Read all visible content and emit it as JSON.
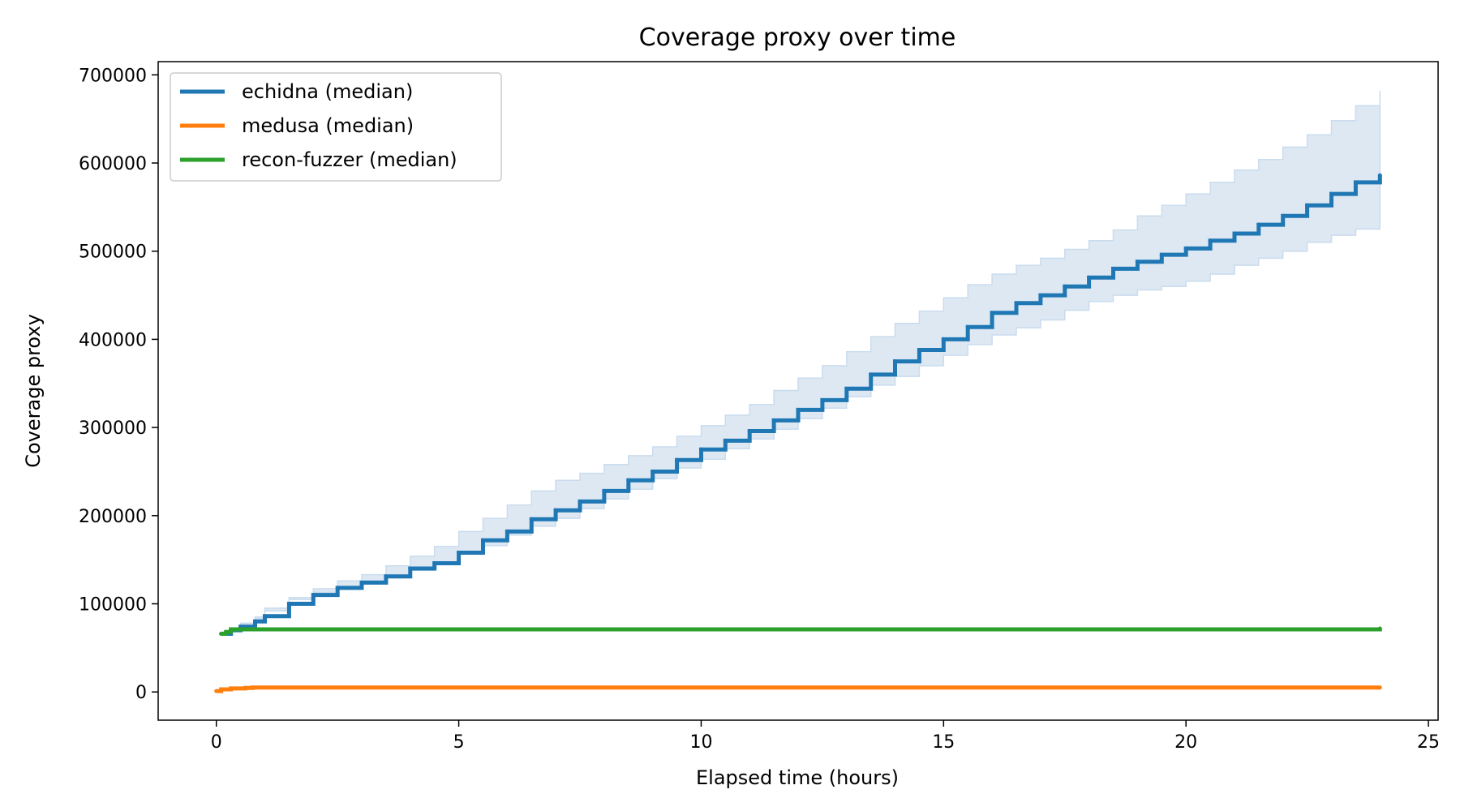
{
  "chart_data": {
    "type": "line",
    "title": "Coverage proxy over time",
    "xlabel": "Elapsed time (hours)",
    "ylabel": "Coverage proxy",
    "xlim": [
      -1.2,
      25.2
    ],
    "ylim": [
      -32000,
      715000
    ],
    "xticks": [
      0,
      5,
      10,
      15,
      20,
      25
    ],
    "yticks": [
      0,
      100000,
      200000,
      300000,
      400000,
      500000,
      600000,
      700000
    ],
    "grid": false,
    "legend_position": "top-left",
    "band_color": "#dde8f3",
    "band_edge_color": "#c9dcee",
    "series": [
      {
        "name": "echidna (median)",
        "color": "#1f77b4",
        "x": [
          0.1,
          0.3,
          0.5,
          0.8,
          1.0,
          1.5,
          2.0,
          2.5,
          3.0,
          3.5,
          4.0,
          4.5,
          5.0,
          5.5,
          6.0,
          6.5,
          7.0,
          7.5,
          8.0,
          8.5,
          9.0,
          9.5,
          10.0,
          10.5,
          11.0,
          11.5,
          12.0,
          12.5,
          13.0,
          13.5,
          14.0,
          14.5,
          15.0,
          15.5,
          16.0,
          16.5,
          17.0,
          17.5,
          18.0,
          18.5,
          19.0,
          19.5,
          20.0,
          20.5,
          21.0,
          21.5,
          22.0,
          22.5,
          23.0,
          23.5,
          24.0
        ],
        "y": [
          66000,
          70000,
          74000,
          80000,
          86000,
          100000,
          110000,
          118000,
          124000,
          131000,
          140000,
          146000,
          158000,
          172000,
          182000,
          196000,
          206000,
          216000,
          228000,
          240000,
          250000,
          263000,
          275000,
          285000,
          296000,
          308000,
          320000,
          331000,
          344000,
          360000,
          375000,
          388000,
          400000,
          414000,
          430000,
          441000,
          450000,
          460000,
          470000,
          480000,
          488000,
          496000,
          503000,
          512000,
          520000,
          530000,
          540000,
          552000,
          565000,
          578000,
          586000
        ],
        "lower": [
          64000,
          67000,
          71000,
          77000,
          83000,
          95000,
          105000,
          113000,
          119000,
          126000,
          133000,
          138000,
          146000,
          157000,
          166000,
          178000,
          188000,
          197000,
          208000,
          219000,
          230000,
          242000,
          254000,
          264000,
          276000,
          287000,
          298000,
          310000,
          322000,
          335000,
          348000,
          358000,
          370000,
          382000,
          394000,
          405000,
          413000,
          422000,
          433000,
          443000,
          450000,
          456000,
          460000,
          466000,
          474000,
          484000,
          492000,
          500000,
          510000,
          518000,
          525000
        ],
        "upper": [
          68000,
          72000,
          78000,
          85000,
          92000,
          107000,
          117000,
          126000,
          133000,
          143000,
          154000,
          165000,
          182000,
          197000,
          212000,
          228000,
          240000,
          248000,
          258000,
          268000,
          278000,
          290000,
          302000,
          314000,
          326000,
          342000,
          356000,
          370000,
          386000,
          403000,
          418000,
          432000,
          447000,
          462000,
          474000,
          484000,
          492000,
          502000,
          512000,
          524000,
          540000,
          552000,
          565000,
          578000,
          592000,
          604000,
          618000,
          632000,
          648000,
          665000,
          682000
        ]
      },
      {
        "name": "medusa (median)",
        "color": "#ff7f0e",
        "x": [
          0.0,
          0.1,
          0.3,
          0.6,
          0.75,
          24.0
        ],
        "y": [
          1000,
          3000,
          4000,
          4500,
          5000,
          5000
        ]
      },
      {
        "name": "recon-fuzzer (median)",
        "color": "#2ca02c",
        "x": [
          0.1,
          0.2,
          0.3,
          24.0
        ],
        "y": [
          66000,
          68000,
          71000,
          72000
        ]
      }
    ]
  }
}
